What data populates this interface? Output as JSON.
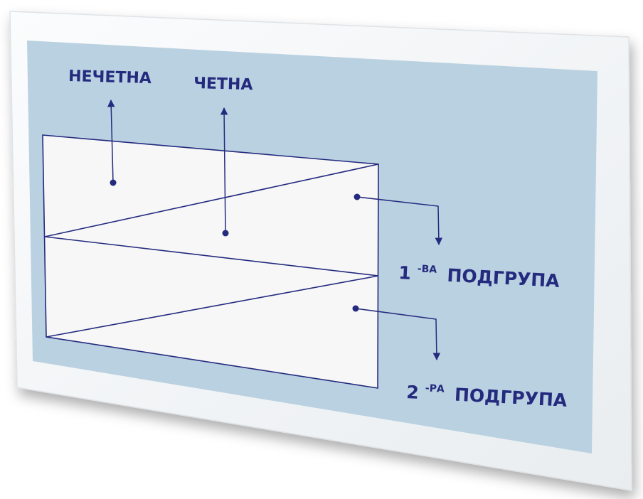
{
  "labels": {
    "odd": "НЕЧЕТНА",
    "even": "ЧЕТНА",
    "subgroup1": {
      "number": "1",
      "suffix": "-ВА",
      "word": "ПОДГРУПА"
    },
    "subgroup2": {
      "number": "2",
      "suffix": "-РА",
      "word": "ПОДГРУПА"
    }
  },
  "colors": {
    "board_frame": "#f4f6f8",
    "board_panel": "#bad1e1",
    "diagram_fill": "#f7f7f8",
    "ink": "#242a7e"
  }
}
